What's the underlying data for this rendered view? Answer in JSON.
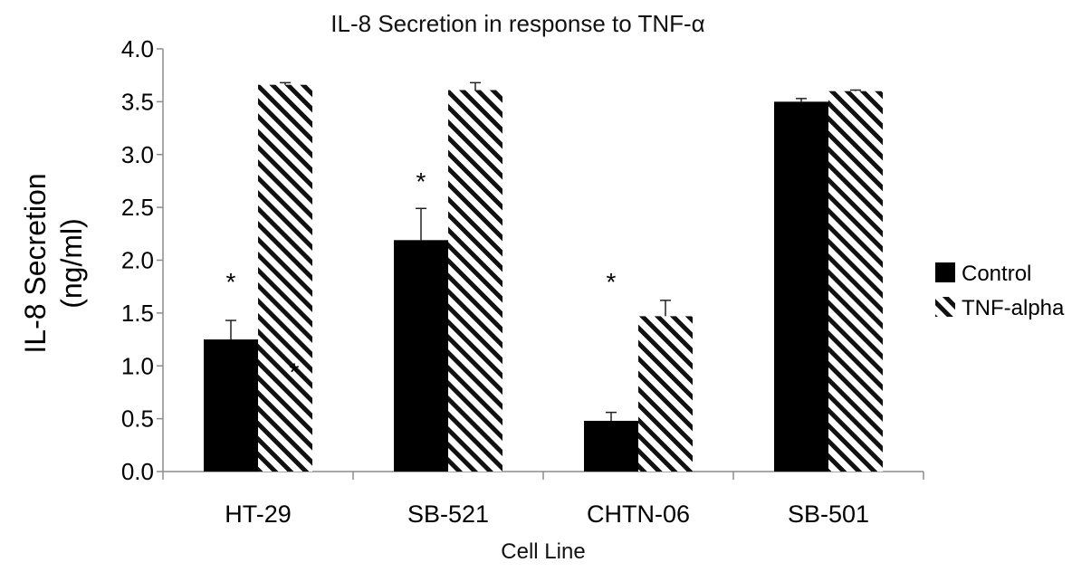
{
  "chart_data": {
    "type": "bar",
    "title": "IL-8 Secretion in response to TNF-α",
    "xlabel": "Cell Line",
    "ylabel_lines": [
      "IL-8 Secretion",
      "(ng/ml)"
    ],
    "ylim": [
      0,
      4.0
    ],
    "yticks": [
      "0.0",
      "0.5",
      "1.0",
      "1.5",
      "2.0",
      "2.5",
      "3.0",
      "3.5",
      "4.0"
    ],
    "categories": [
      "HT-29",
      "SB-521",
      "CHTN-06",
      "SB-501"
    ],
    "series": [
      {
        "name": "Control",
        "values": [
          1.25,
          2.19,
          0.48,
          3.5
        ],
        "errors": [
          0.18,
          0.3,
          0.08,
          0.03
        ],
        "fill": "solid",
        "color": "#000000"
      },
      {
        "name": "TNF-alpha",
        "values": [
          3.66,
          3.61,
          1.47,
          3.6
        ],
        "errors": [
          0.02,
          0.07,
          0.15,
          0.01
        ],
        "fill": "diagonal-hatch",
        "color": "#000000"
      }
    ],
    "legend": {
      "position": "right"
    },
    "grid": false,
    "annotations": [
      {
        "text": "*",
        "category": "HT-29",
        "y": 1.85
      },
      {
        "text": "*",
        "category": "HT-29",
        "y": 1.0
      },
      {
        "text": "*",
        "category": "SB-521",
        "y": 2.8
      },
      {
        "text": "*",
        "category": "CHTN-06",
        "y": 1.85
      }
    ]
  }
}
